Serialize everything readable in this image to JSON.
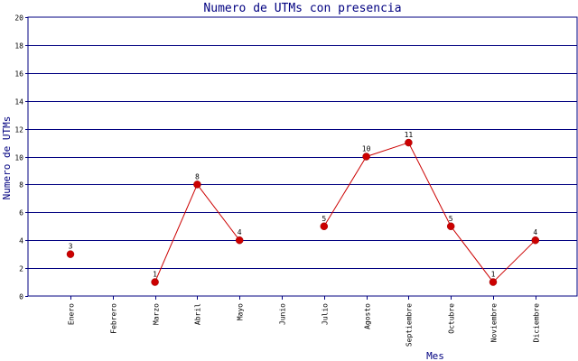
{
  "chart_data": {
    "type": "line",
    "title": "Numero de UTMs con presencia",
    "xlabel": "Mes",
    "ylabel": "Numero de UTMs",
    "categories": [
      "Enero",
      "Febrero",
      "Marzo",
      "Abril",
      "Mayo",
      "Junio",
      "Julio",
      "Agosto",
      "Septiembre",
      "Octubre",
      "Noviembre",
      "Diciembre"
    ],
    "values": [
      3,
      null,
      1,
      8,
      4,
      null,
      5,
      10,
      11,
      5,
      1,
      4
    ],
    "ylim": [
      0,
      20
    ],
    "yticks": [
      0,
      2,
      4,
      6,
      8,
      10,
      12,
      14,
      16,
      18,
      20
    ],
    "grid": true,
    "colors": {
      "title": "#000080",
      "grid": "#000080",
      "line": "#cc0000",
      "marker": "#cc0000",
      "axis": "#000080"
    }
  }
}
